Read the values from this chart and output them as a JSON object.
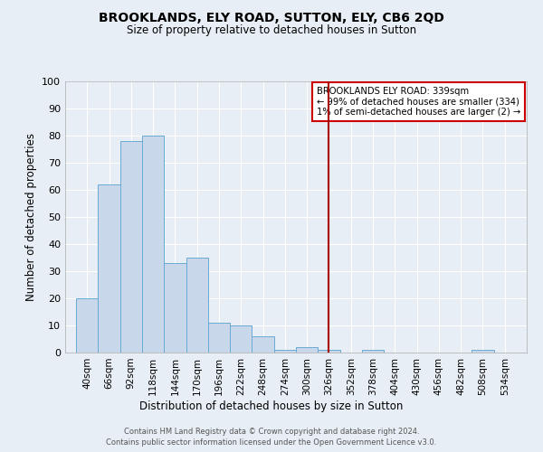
{
  "title": "BROOKLANDS, ELY ROAD, SUTTON, ELY, CB6 2QD",
  "subtitle": "Size of property relative to detached houses in Sutton",
  "xlabel": "Distribution of detached houses by size in Sutton",
  "ylabel": "Number of detached properties",
  "bar_color": "#c8d8ea",
  "bar_edge_color": "#6aaad4",
  "background_color": "#e8eef5",
  "grid_color": "#ffffff",
  "bin_edges": [
    40,
    66,
    92,
    118,
    144,
    170,
    196,
    222,
    248,
    274,
    300,
    326,
    352,
    378,
    404,
    430,
    456,
    482,
    508,
    534,
    560
  ],
  "bar_heights": [
    20,
    62,
    78,
    80,
    33,
    35,
    11,
    10,
    6,
    1,
    2,
    1,
    0,
    1,
    0,
    0,
    0,
    0,
    1,
    0
  ],
  "vline_x": 339,
  "vline_color": "#aa0000",
  "legend_title": "BROOKLANDS ELY ROAD: 339sqm",
  "legend_line1": "← 99% of detached houses are smaller (334)",
  "legend_line2": "1% of semi-detached houses are larger (2) →",
  "legend_box_color": "#ffffff",
  "legend_border_color": "#cc0000",
  "ytick_values": [
    0,
    10,
    20,
    30,
    40,
    50,
    60,
    70,
    80,
    90,
    100
  ],
  "ylim": [
    0,
    100
  ],
  "footer1": "Contains HM Land Registry data © Crown copyright and database right 2024.",
  "footer2": "Contains public sector information licensed under the Open Government Licence v3.0."
}
